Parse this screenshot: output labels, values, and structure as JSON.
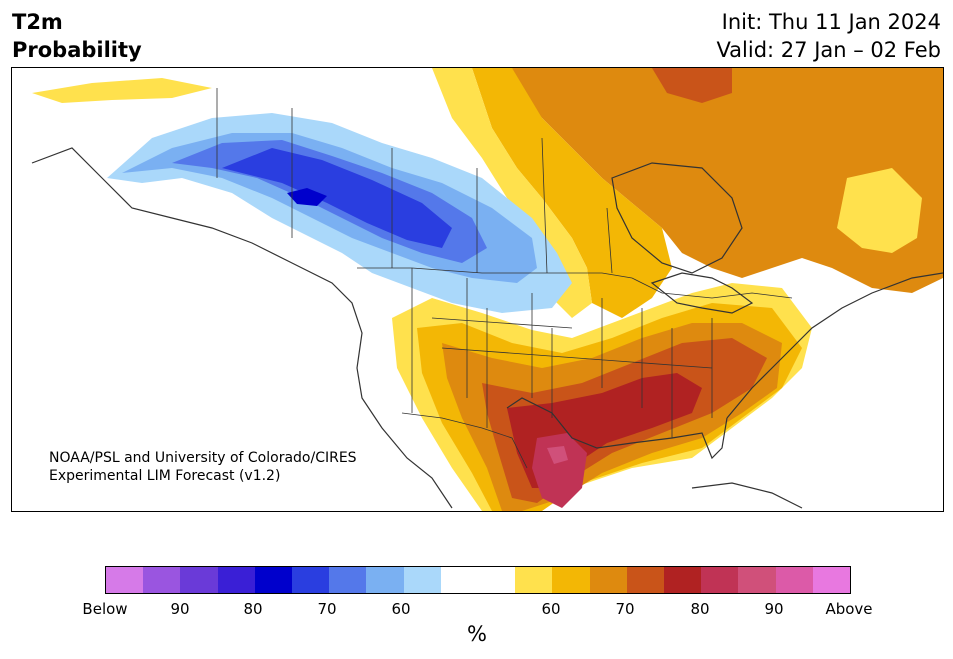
{
  "title": {
    "variable": "T2m",
    "subtitle": "Probability",
    "init": "Init: Thu 11 Jan 2024",
    "valid": "Valid: 27 Jan – 02 Feb"
  },
  "credit": {
    "line1": "NOAA/PSL and University of Colorado/CIRES",
    "line2": "Experimental LIM Forecast (v1.2)"
  },
  "colorbar": {
    "unit": "%",
    "colors": [
      "#d67ae8",
      "#9a55e0",
      "#6a3ad8",
      "#3a1fd6",
      "#0000cc",
      "#2a3ee0",
      "#5478ea",
      "#7ab0f2",
      "#aad8fa",
      "#ffffff",
      "#ffffff",
      "#ffe14d",
      "#f3b705",
      "#de8a0f",
      "#c95419",
      "#b02222",
      "#c03355",
      "#d0507a",
      "#dc5aa8",
      "#e878e0"
    ],
    "ticks": [
      "Below",
      "90",
      "80",
      "70",
      "60",
      "60",
      "70",
      "80",
      "90",
      "Above"
    ]
  },
  "legend_colors": {
    "below_strong": "#0000cc",
    "below_weak": "#aad8fa",
    "above_weak": "#ffe14d",
    "above_strong": "#b02222"
  }
}
